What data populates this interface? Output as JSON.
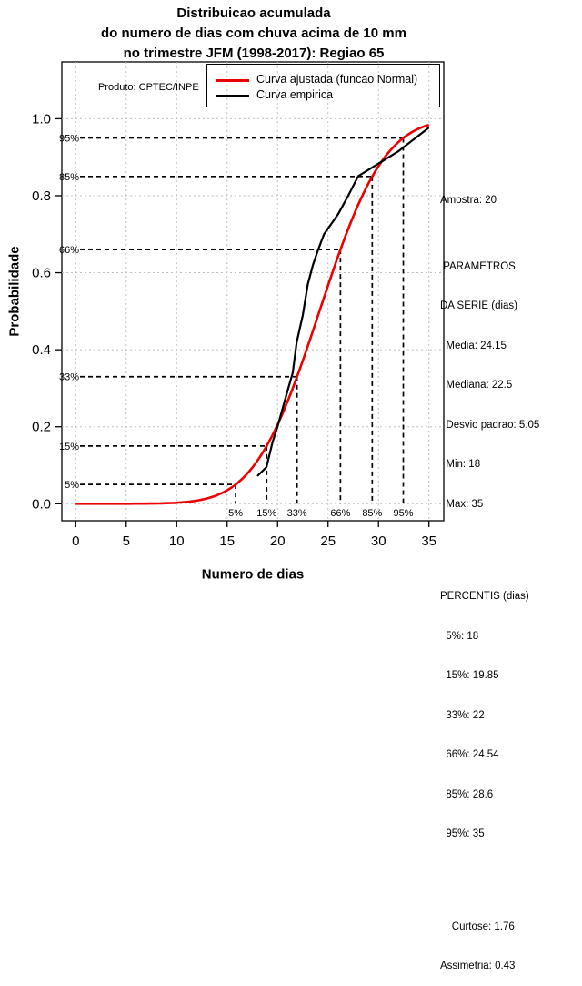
{
  "chart_data": {
    "type": "line",
    "title_lines": [
      "Distribuicao acumulada",
      "do numero de dias com chuva acima de 10 mm",
      "no trimestre JFM (1998-2017): Regiao 65"
    ],
    "xlabel": "Numero de dias",
    "ylabel": "Probabilidade",
    "annotation": "Produto: CPTEC/INPE",
    "xlim": [
      0,
      35
    ],
    "ylim": [
      0.0,
      1.0
    ],
    "x_ticks": [
      "0",
      "5",
      "10",
      "15",
      "20",
      "25",
      "30",
      "35"
    ],
    "y_ticks": [
      "0.0",
      "0.2",
      "0.4",
      "0.6",
      "0.8",
      "1.0"
    ],
    "grid": "dotted-gray",
    "grid_color": "#bfbfbf",
    "legend_position": "top-center-inside",
    "legend": [
      {
        "label": "Curva ajustada (funcao Normal)",
        "color": "#ee0000"
      },
      {
        "label": "Curva empirica",
        "color": "#000000"
      }
    ],
    "series": [
      {
        "name": "Curva ajustada (funcao Normal)",
        "color": "#ee0000",
        "model": "normal_cdf",
        "mean": 24.15,
        "sd": 5.05,
        "x_range": [
          0,
          35
        ]
      },
      {
        "name": "Curva empirica",
        "color": "#000000",
        "points": [
          [
            18,
            0.072
          ],
          [
            18.9,
            0.095
          ],
          [
            19.5,
            0.16
          ],
          [
            20,
            0.2
          ],
          [
            20.9,
            0.285
          ],
          [
            21.5,
            0.34
          ],
          [
            21.9,
            0.42
          ],
          [
            22.5,
            0.49
          ],
          [
            23,
            0.57
          ],
          [
            23.5,
            0.62
          ],
          [
            24,
            0.658
          ],
          [
            24.6,
            0.7
          ],
          [
            26,
            0.752
          ],
          [
            27,
            0.8
          ],
          [
            28,
            0.851
          ],
          [
            32,
            0.916
          ],
          [
            35,
            0.977
          ]
        ]
      }
    ],
    "percentile_guides": [
      {
        "label": "5%",
        "prob": 0.05,
        "day": 15.84
      },
      {
        "label": "15%",
        "prob": 0.15,
        "day": 18.92
      },
      {
        "label": "33%",
        "prob": 0.33,
        "day": 21.93
      },
      {
        "label": "66%",
        "prob": 0.66,
        "day": 26.23
      },
      {
        "label": "85%",
        "prob": 0.85,
        "day": 29.38
      },
      {
        "label": "95%",
        "prob": 0.95,
        "day": 32.46
      }
    ],
    "guide_style": "black-dashed"
  },
  "stats_panel": {
    "lines": [
      "Amostra: 20",
      "",
      " PARAMETROS",
      "DA SERIE (dias)",
      "  Media: 24.15",
      "  Mediana: 22.5",
      "  Desvio padrao: 5.05",
      "  Min: 18",
      "  Max: 35",
      "",
      "",
      "PERCENTIS (dias)",
      "  5%: 18",
      "  15%: 19.85",
      "  33%: 22",
      "  66%: 24.54",
      "  85%: 28.6",
      "  95%: 35",
      "",
      "",
      "    Curtose: 1.76",
      "Assimetria: 0.43"
    ]
  }
}
